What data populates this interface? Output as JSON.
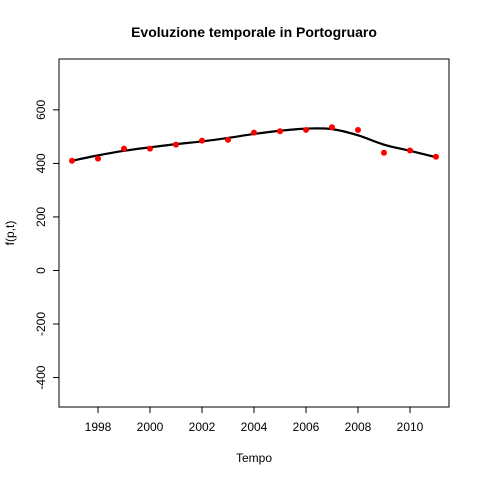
{
  "chart_data": {
    "type": "scatter",
    "title": "Evoluzione temporale in Portogruaro",
    "xlabel": "Tempo",
    "ylabel": "f(p,t)",
    "xlim": [
      1996.5,
      2011.5
    ],
    "ylim": [
      -510,
      790
    ],
    "x_ticks": [
      1998,
      2000,
      2002,
      2004,
      2006,
      2008,
      2010
    ],
    "y_ticks": [
      -400,
      -200,
      0,
      200,
      400,
      600
    ],
    "grid": false,
    "point_color": "#ff0000",
    "line_color": "#000000",
    "series": [
      {
        "kind": "points",
        "x": [
          1997,
          1998,
          1999,
          2000,
          2001,
          2002,
          2003,
          2004,
          2005,
          2006,
          2007,
          2008,
          2009,
          2010,
          2011
        ],
        "y": [
          410,
          418,
          455,
          455,
          470,
          485,
          488,
          515,
          520,
          525,
          535,
          525,
          440,
          448,
          425
        ]
      },
      {
        "kind": "smooth-line",
        "x": [
          1997,
          1998,
          1999,
          2000,
          2001,
          2002,
          2003,
          2004,
          2005,
          2006,
          2007,
          2008,
          2009,
          2010,
          2011
        ],
        "y": [
          410,
          430,
          447,
          460,
          472,
          482,
          495,
          510,
          522,
          530,
          528,
          505,
          470,
          447,
          423
        ]
      }
    ]
  }
}
